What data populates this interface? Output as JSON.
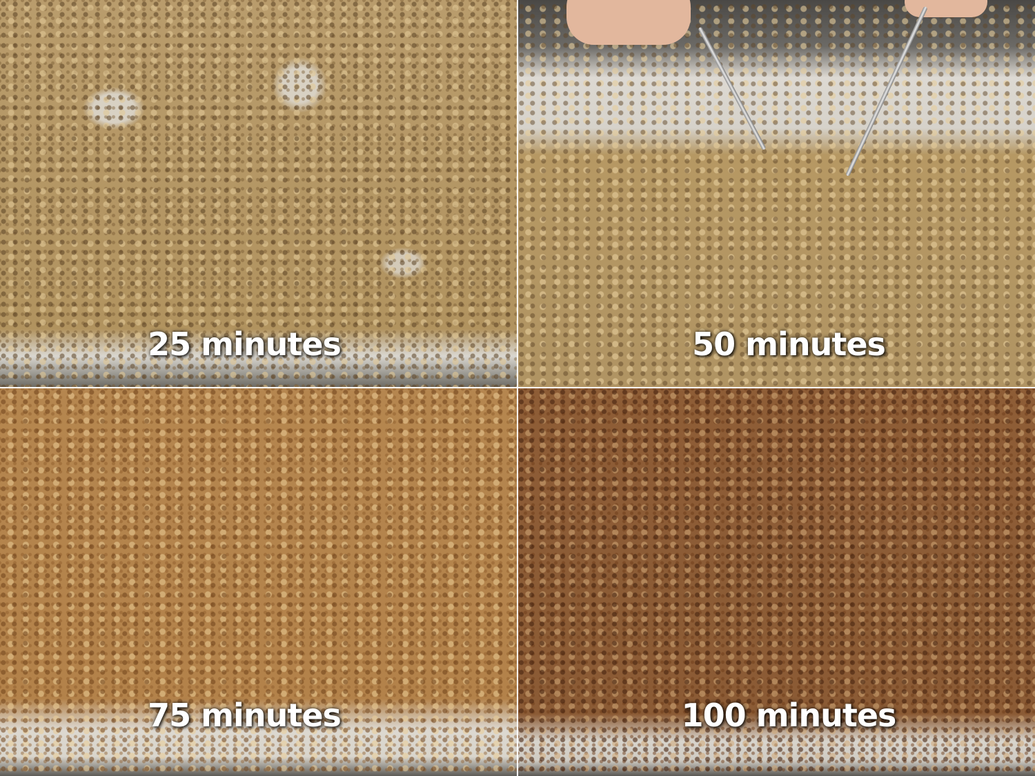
{
  "panels": [
    {
      "label": "25 minutes",
      "color": "#b99c6c"
    },
    {
      "label": "50 minutes",
      "color": "#b69863"
    },
    {
      "label": "75 minutes",
      "color": "#b5864f"
    },
    {
      "label": "100 minutes",
      "color": "#8e5d36"
    }
  ]
}
